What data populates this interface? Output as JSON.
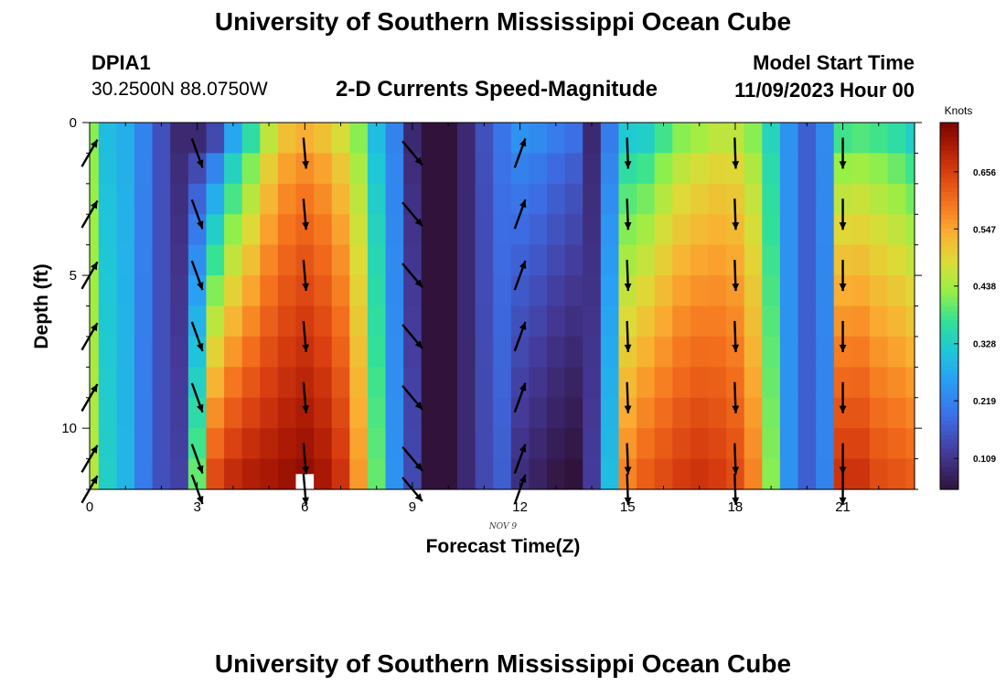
{
  "header": {
    "title": "University of Southern Mississippi Ocean Cube",
    "station_id": "DPIA1",
    "coordinates": "30.2500N  88.0750W",
    "plot_title": "2-D Currents Speed-Magnitude",
    "model_start_label": "Model Start Time",
    "model_start_value": "11/09/2023 Hour 00"
  },
  "footer": {
    "title": "University of Southern Mississippi Ocean Cube"
  },
  "chart_data": {
    "type": "heatmap",
    "title": "2-D Currents Speed-Magnitude",
    "xlabel": "Forecast Time(Z)",
    "ylabel": "Depth (ft)",
    "date_label": "NOV 9",
    "x_ticks": [
      0,
      3,
      6,
      9,
      12,
      15,
      18,
      21
    ],
    "x_tick_labels": [
      "0",
      "3",
      "6",
      "9",
      "12",
      "15",
      "18",
      "21"
    ],
    "y_ticks": [
      0,
      5,
      10
    ],
    "y_tick_labels": [
      "0",
      "5",
      "10"
    ],
    "xlim": [
      0,
      23
    ],
    "ylim": [
      0,
      12
    ],
    "colorbar": {
      "label": "Knots",
      "tick_values": [
        0.109,
        0.219,
        0.328,
        0.438,
        0.547,
        0.656
      ],
      "tick_labels": [
        "0.109",
        "0.219",
        "0.328",
        "0.438",
        "0.547",
        "0.656"
      ],
      "range": [
        0.05,
        0.75
      ]
    },
    "time_steps_hours": [
      0,
      0.5,
      1,
      1.5,
      2,
      2.5,
      3,
      3.5,
      4,
      4.5,
      5,
      5.5,
      6,
      6.5,
      7,
      7.5,
      8,
      8.5,
      9,
      9.5,
      10,
      10.5,
      11,
      11.5,
      12,
      12.5,
      13,
      13.5,
      14,
      14.5,
      15,
      15.5,
      16,
      16.5,
      17,
      17.5,
      18,
      18.5,
      19,
      19.5,
      20,
      20.5,
      21,
      21.5,
      22,
      22.5,
      23
    ],
    "surface_speed_knots": [
      0.42,
      0.3,
      0.28,
      0.22,
      0.15,
      0.09,
      0.09,
      0.14,
      0.27,
      0.36,
      0.46,
      0.52,
      0.54,
      0.52,
      0.48,
      0.42,
      0.3,
      0.22,
      0.09,
      0.05,
      0.05,
      0.09,
      0.15,
      0.2,
      0.24,
      0.23,
      0.21,
      0.19,
      0.09,
      0.21,
      0.32,
      0.33,
      0.38,
      0.42,
      0.44,
      0.46,
      0.46,
      0.42,
      0.34,
      0.24,
      0.17,
      0.23,
      0.38,
      0.39,
      0.38,
      0.36,
      0.33
    ],
    "bottom_speed_knots": [
      0.45,
      0.33,
      0.29,
      0.21,
      0.15,
      0.13,
      0.4,
      0.64,
      0.68,
      0.7,
      0.71,
      0.72,
      0.73,
      0.71,
      0.67,
      0.56,
      0.4,
      0.24,
      0.14,
      0.05,
      0.05,
      0.09,
      0.14,
      0.17,
      0.1,
      0.08,
      0.06,
      0.05,
      0.12,
      0.3,
      0.58,
      0.62,
      0.64,
      0.66,
      0.67,
      0.66,
      0.64,
      0.58,
      0.42,
      0.24,
      0.17,
      0.22,
      0.67,
      0.67,
      0.64,
      0.63,
      0.62
    ],
    "missing_cells": [
      {
        "hour": 6,
        "depth_ft": 12
      }
    ],
    "vectors": {
      "hours": [
        0,
        3,
        6,
        9,
        12,
        15,
        18,
        21
      ],
      "depths_ft": [
        1,
        3,
        5,
        7,
        9,
        11,
        12
      ],
      "direction_deg_clockwise_from_north": [
        30,
        160,
        175,
        140,
        20,
        178,
        178,
        180
      ],
      "vector_length_ft_scale": [
        1.0,
        1.0,
        1.0,
        1.0,
        1.0,
        1.0,
        1.0,
        1.0
      ]
    },
    "grid": false
  }
}
